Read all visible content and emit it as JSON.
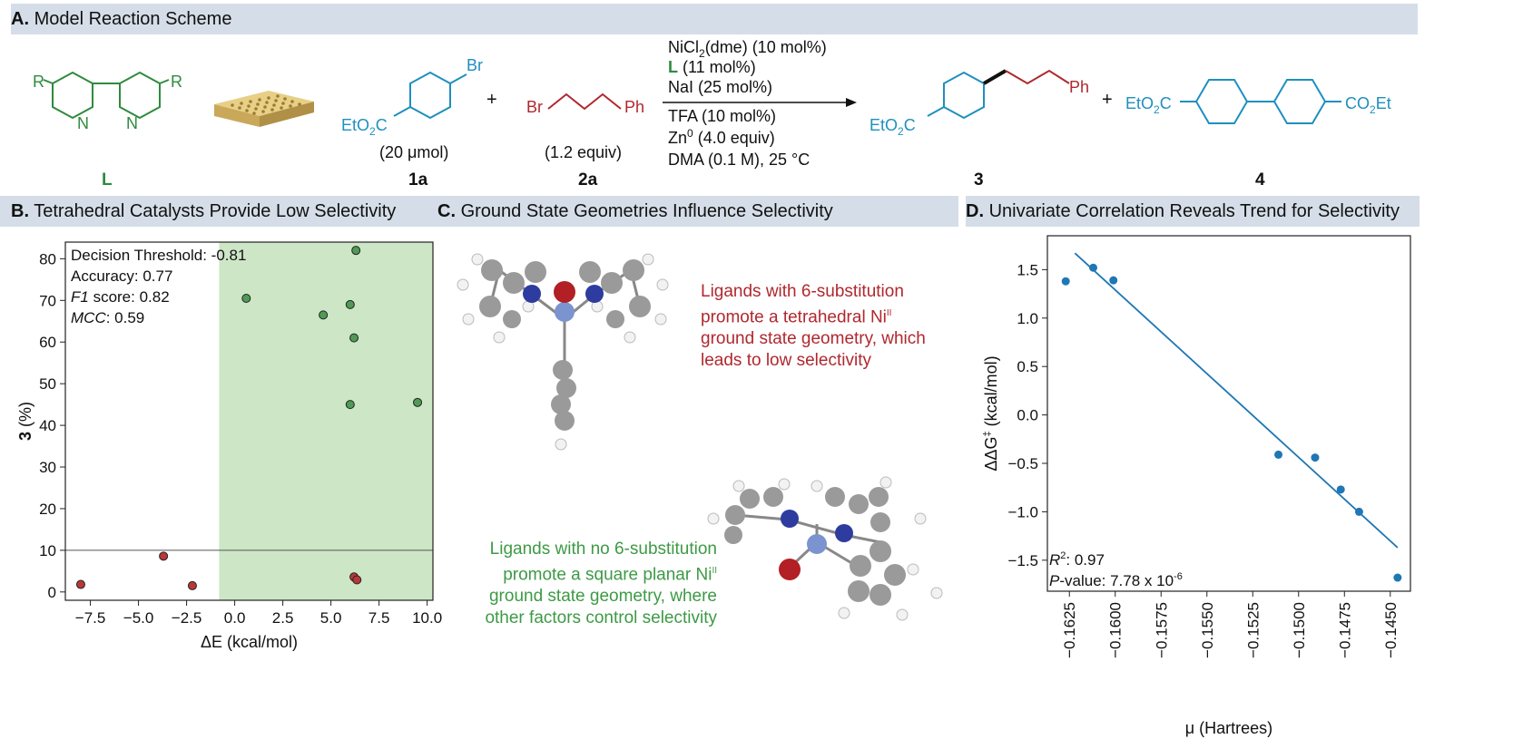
{
  "panelA": {
    "letter": "A.",
    "title": "Model Reaction Scheme",
    "ligand_label": "L",
    "ligand_R": "R",
    "ligand_N": "N",
    "sub1_br": "Br",
    "sub1_ester": "EtO",
    "sub1_ester2": "2",
    "sub1_ester3": "C",
    "sub1_amount": "(20 μmol)",
    "sub1_label": "1a",
    "plus": "+",
    "sub2_br": "Br",
    "sub2_ph": "Ph",
    "sub2_amount": "(1.2 equiv)",
    "sub2_label": "2a",
    "cond1a": "NiCl",
    "cond1b": "2",
    "cond1c": "(dme) (10 mol%)",
    "cond2a": "L",
    "cond2b": " (11 mol%)",
    "cond3": "NaI (25 mol%)",
    "cond4": "TFA (10 mol%)",
    "cond5a": "Zn",
    "cond5b": "0",
    "cond5c": " (4.0 equiv)",
    "cond6": "DMA (0.1 M), 25 °C",
    "prod3_ph": "Ph",
    "prod3_label": "3",
    "prod4_right_a": "CO",
    "prod4_right_b": "2",
    "prod4_right_c": "Et",
    "prod4_label": "4"
  },
  "panelB": {
    "letter": "B.",
    "title": "Tetrahedral Catalysts Provide Low Selectivity",
    "stats": {
      "threshold": "Decision Threshold: -0.81",
      "accuracy": "Accuracy: 0.77",
      "f1_label": "F1",
      "f1_rest": " score: 0.82",
      "mcc_label": "MCC",
      "mcc_rest": ": 0.59"
    }
  },
  "panelC": {
    "letter": "C.",
    "title": "Ground State Geometries Influence Selectivity",
    "red_text": [
      "Ligands with 6-substitution",
      "promote a tetrahedral Ni",
      "ground state geometry, which",
      "leads to low selectivity"
    ],
    "red_sup": "II",
    "green_text": [
      "Ligands with no 6-substitution",
      "promote a square planar Ni",
      "ground state geometry, where",
      "other factors control selectivity"
    ],
    "green_sup": "II"
  },
  "panelD": {
    "letter": "D.",
    "title": "Univariate Correlation Reveals Trend for Selectivity",
    "r2_a": "R",
    "r2_b": "2",
    "r2_c": ": 0.97",
    "p_a": "P",
    "p_b": "-value: 7.78 x 10",
    "p_c": "-6"
  },
  "chart_data": [
    {
      "type": "scatter",
      "xlabel": "ΔE (kcal/mol)",
      "ylabel_a": "3",
      "ylabel_b": " (%)",
      "xlim": [
        -8.8,
        10.3
      ],
      "ylim": [
        -2,
        84
      ],
      "xticks": [
        -7.5,
        -5.0,
        -2.5,
        0.0,
        2.5,
        5.0,
        7.5,
        10.0
      ],
      "xtick_labels": [
        "−7.5",
        "−5.0",
        "−2.5",
        "0.0",
        "2.5",
        "5.0",
        "7.5",
        "10.0"
      ],
      "yticks": [
        0,
        10,
        20,
        30,
        40,
        50,
        60,
        70,
        80
      ],
      "ytick_labels": [
        "0",
        "10",
        "20",
        "30",
        "40",
        "50",
        "60",
        "70",
        "80"
      ],
      "threshold_x": -0.81,
      "hline_y": 10,
      "shaded_region_color": "#cde6c6",
      "series": [
        {
          "color": "#4f9a57",
          "points": [
            [
              0.6,
              70.5
            ],
            [
              4.6,
              66.5
            ],
            [
              6.0,
              69.0
            ],
            [
              6.2,
              61.0
            ],
            [
              6.3,
              82.0
            ],
            [
              6.0,
              45.0
            ],
            [
              9.5,
              45.5
            ]
          ]
        },
        {
          "color": "#b8383a",
          "points": [
            [
              -8.0,
              1.8
            ],
            [
              -3.7,
              8.6
            ],
            [
              -2.2,
              1.5
            ],
            [
              6.2,
              3.6
            ],
            [
              6.35,
              2.9
            ]
          ]
        }
      ]
    },
    {
      "type": "scatter",
      "xlabel": "μ (Hartrees)",
      "ylabel_a": "ΔΔG",
      "ylabel_b": "‡",
      "ylabel_c": " (kcal/mol)",
      "xlim": [
        -0.1637,
        -0.1439
      ],
      "ylim": [
        -1.82,
        1.85
      ],
      "xticks": [
        -0.1625,
        -0.16,
        -0.1575,
        -0.155,
        -0.1525,
        -0.15,
        -0.1475,
        -0.145
      ],
      "xtick_labels": [
        "−0.1625",
        "−0.1600",
        "−0.1575",
        "−0.1550",
        "−0.1525",
        "−0.1500",
        "−0.1475",
        "−0.1450"
      ],
      "yticks": [
        -1.5,
        -1.0,
        -0.5,
        0.0,
        0.5,
        1.0,
        1.5
      ],
      "ytick_labels": [
        "−1.5",
        "−1.0",
        "−0.5",
        "0.0",
        "0.5",
        "1.0",
        "1.5"
      ],
      "color": "#1f77b4",
      "points": [
        [
          -0.1627,
          1.38
        ],
        [
          -0.1612,
          1.52
        ],
        [
          -0.1601,
          1.39
        ],
        [
          -0.1511,
          -0.41
        ],
        [
          -0.1491,
          -0.44
        ],
        [
          -0.1477,
          -0.77
        ],
        [
          -0.1467,
          -1.0
        ],
        [
          -0.1446,
          -1.68
        ]
      ],
      "fit_line": [
        [
          -0.1622,
          1.67
        ],
        [
          -0.1446,
          -1.37
        ]
      ]
    }
  ]
}
